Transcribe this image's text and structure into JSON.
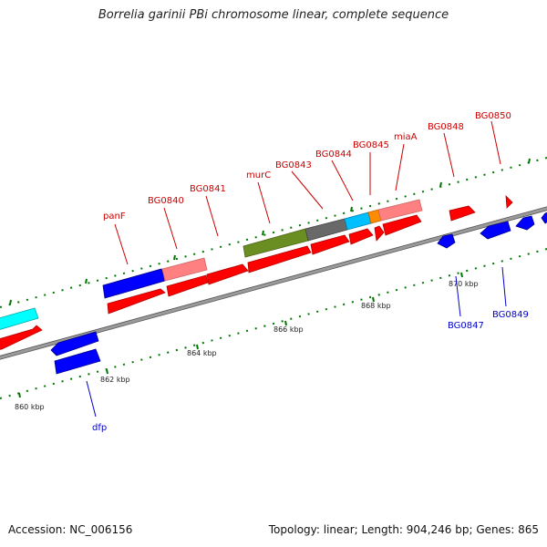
{
  "title": "Borrelia garinii PBi chromosome linear, complete sequence",
  "footer": {
    "accession": "Accession: NC_006156",
    "summary": "Topology: linear; Length: 904,246 bp; Genes: 865"
  },
  "colors": {
    "backbone": "#7c7c7c",
    "forward_gene": "#ff0000",
    "reverse_gene": "#0000ff",
    "label_forward": "#cc0000",
    "label_reverse": "#0000cc",
    "tick": "#007700"
  },
  "scale": {
    "unit": "kbp",
    "labels": [
      {
        "text": "860 kbp",
        "pos_kbp": 860
      },
      {
        "text": "862 kbp",
        "pos_kbp": 862
      },
      {
        "text": "864 kbp",
        "pos_kbp": 864
      },
      {
        "text": "866 kbp",
        "pos_kbp": 866
      },
      {
        "text": "868 kbp",
        "pos_kbp": 868
      },
      {
        "text": "870 kbp",
        "pos_kbp": 870
      }
    ]
  },
  "genes": {
    "forward_labels": [
      "panF",
      "BG0840",
      "BG0841",
      "murC",
      "BG0843",
      "BG0844",
      "BG0845",
      "miaA",
      "BG0848",
      "BG0850"
    ],
    "reverse_labels": [
      "dfp",
      "BG0847",
      "BG0849"
    ]
  },
  "features": {
    "forward_strand_colors": [
      "#0000ff",
      "#ff8080",
      "#6b8e23",
      "#696969",
      "#00bfff",
      "#ff8c00",
      "#ff8080",
      "#00ffff"
    ]
  }
}
